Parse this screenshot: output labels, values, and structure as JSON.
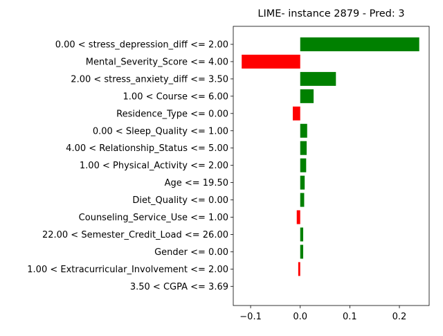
{
  "chart_data": {
    "type": "bar",
    "orientation": "horizontal",
    "title": "LIME- instance 2879 - Pred: 3",
    "xlabel": "",
    "ylabel": "",
    "xlim": [
      -0.135,
      0.26
    ],
    "xticks": [
      -0.1,
      0.0,
      0.1,
      0.2
    ],
    "xtick_labels": [
      "−0.1",
      "0.0",
      "0.1",
      "0.2"
    ],
    "grid": false,
    "positive_color": "#008000",
    "negative_color": "#ff0000",
    "categories": [
      "0.00 < stress_depression_diff <= 2.00",
      "Mental_Severity_Score <= 4.00",
      "2.00 < stress_anxiety_diff <= 3.50",
      "1.00 < Course <= 6.00",
      "Residence_Type <= 0.00",
      "0.00 < Sleep_Quality <= 1.00",
      "4.00 < Relationship_Status <= 5.00",
      "1.00 < Physical_Activity <= 2.00",
      "Age <= 19.50",
      "Diet_Quality <= 0.00",
      "Counseling_Service_Use <= 1.00",
      "22.00 < Semester_Credit_Load <= 26.00",
      "Gender <= 0.00",
      "1.00 < Extracurricular_Involvement <= 2.00",
      "3.50 < CGPA <= 3.69"
    ],
    "values": [
      0.24,
      -0.118,
      0.072,
      0.027,
      -0.015,
      0.014,
      0.013,
      0.012,
      0.009,
      0.008,
      -0.007,
      0.006,
      0.006,
      -0.004,
      0.0
    ]
  }
}
